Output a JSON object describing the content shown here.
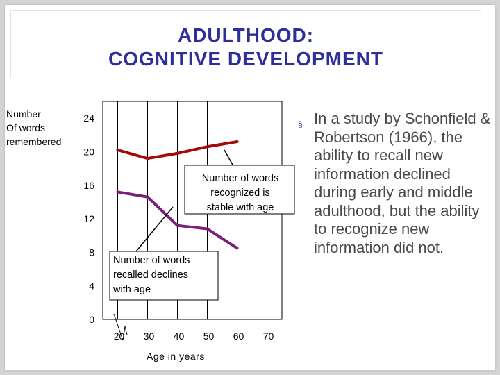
{
  "slide": {
    "title_line1": "ADULTHOOD:",
    "title_line2": "COGNITIVE DEVELOPMENT",
    "bullet_marker": "§",
    "bullet_text": "In a study by Schonfield & Robertson (1966), the ability to recall new information declined during early and middle adulthood, but the ability to recognize new information did not."
  },
  "colors": {
    "title": "#2e2e9a",
    "recognized_line": "#a50a0a",
    "recalled_line": "#7a1f7a",
    "bullet_text": "#4a4a4a"
  },
  "chart_data": {
    "type": "line",
    "ylabel_lines": [
      "Number",
      "Of words",
      "remembered"
    ],
    "xlabel": "Age in years",
    "x_ticks": [
      20,
      30,
      40,
      50,
      60,
      70
    ],
    "y_ticks": [
      0,
      4,
      8,
      12,
      16,
      20,
      24
    ],
    "xlim": [
      15,
      75
    ],
    "ylim": [
      0,
      26
    ],
    "grid": true,
    "series": [
      {
        "key": "recognized",
        "x": [
          20,
          30,
          40,
          50,
          60
        ],
        "values": [
          20.2,
          19.2,
          19.8,
          20.6,
          21.2
        ]
      },
      {
        "key": "recalled",
        "x": [
          20,
          30,
          40,
          50,
          60
        ],
        "values": [
          15.2,
          14.6,
          11.2,
          10.8,
          8.5
        ]
      }
    ],
    "annotations": [
      {
        "key": "recognized",
        "lines": [
          "Number of words",
          "recognized is",
          "stable with age"
        ]
      },
      {
        "key": "recalled",
        "lines": [
          "Number of words",
          "recalled declines",
          "with age"
        ]
      }
    ]
  }
}
